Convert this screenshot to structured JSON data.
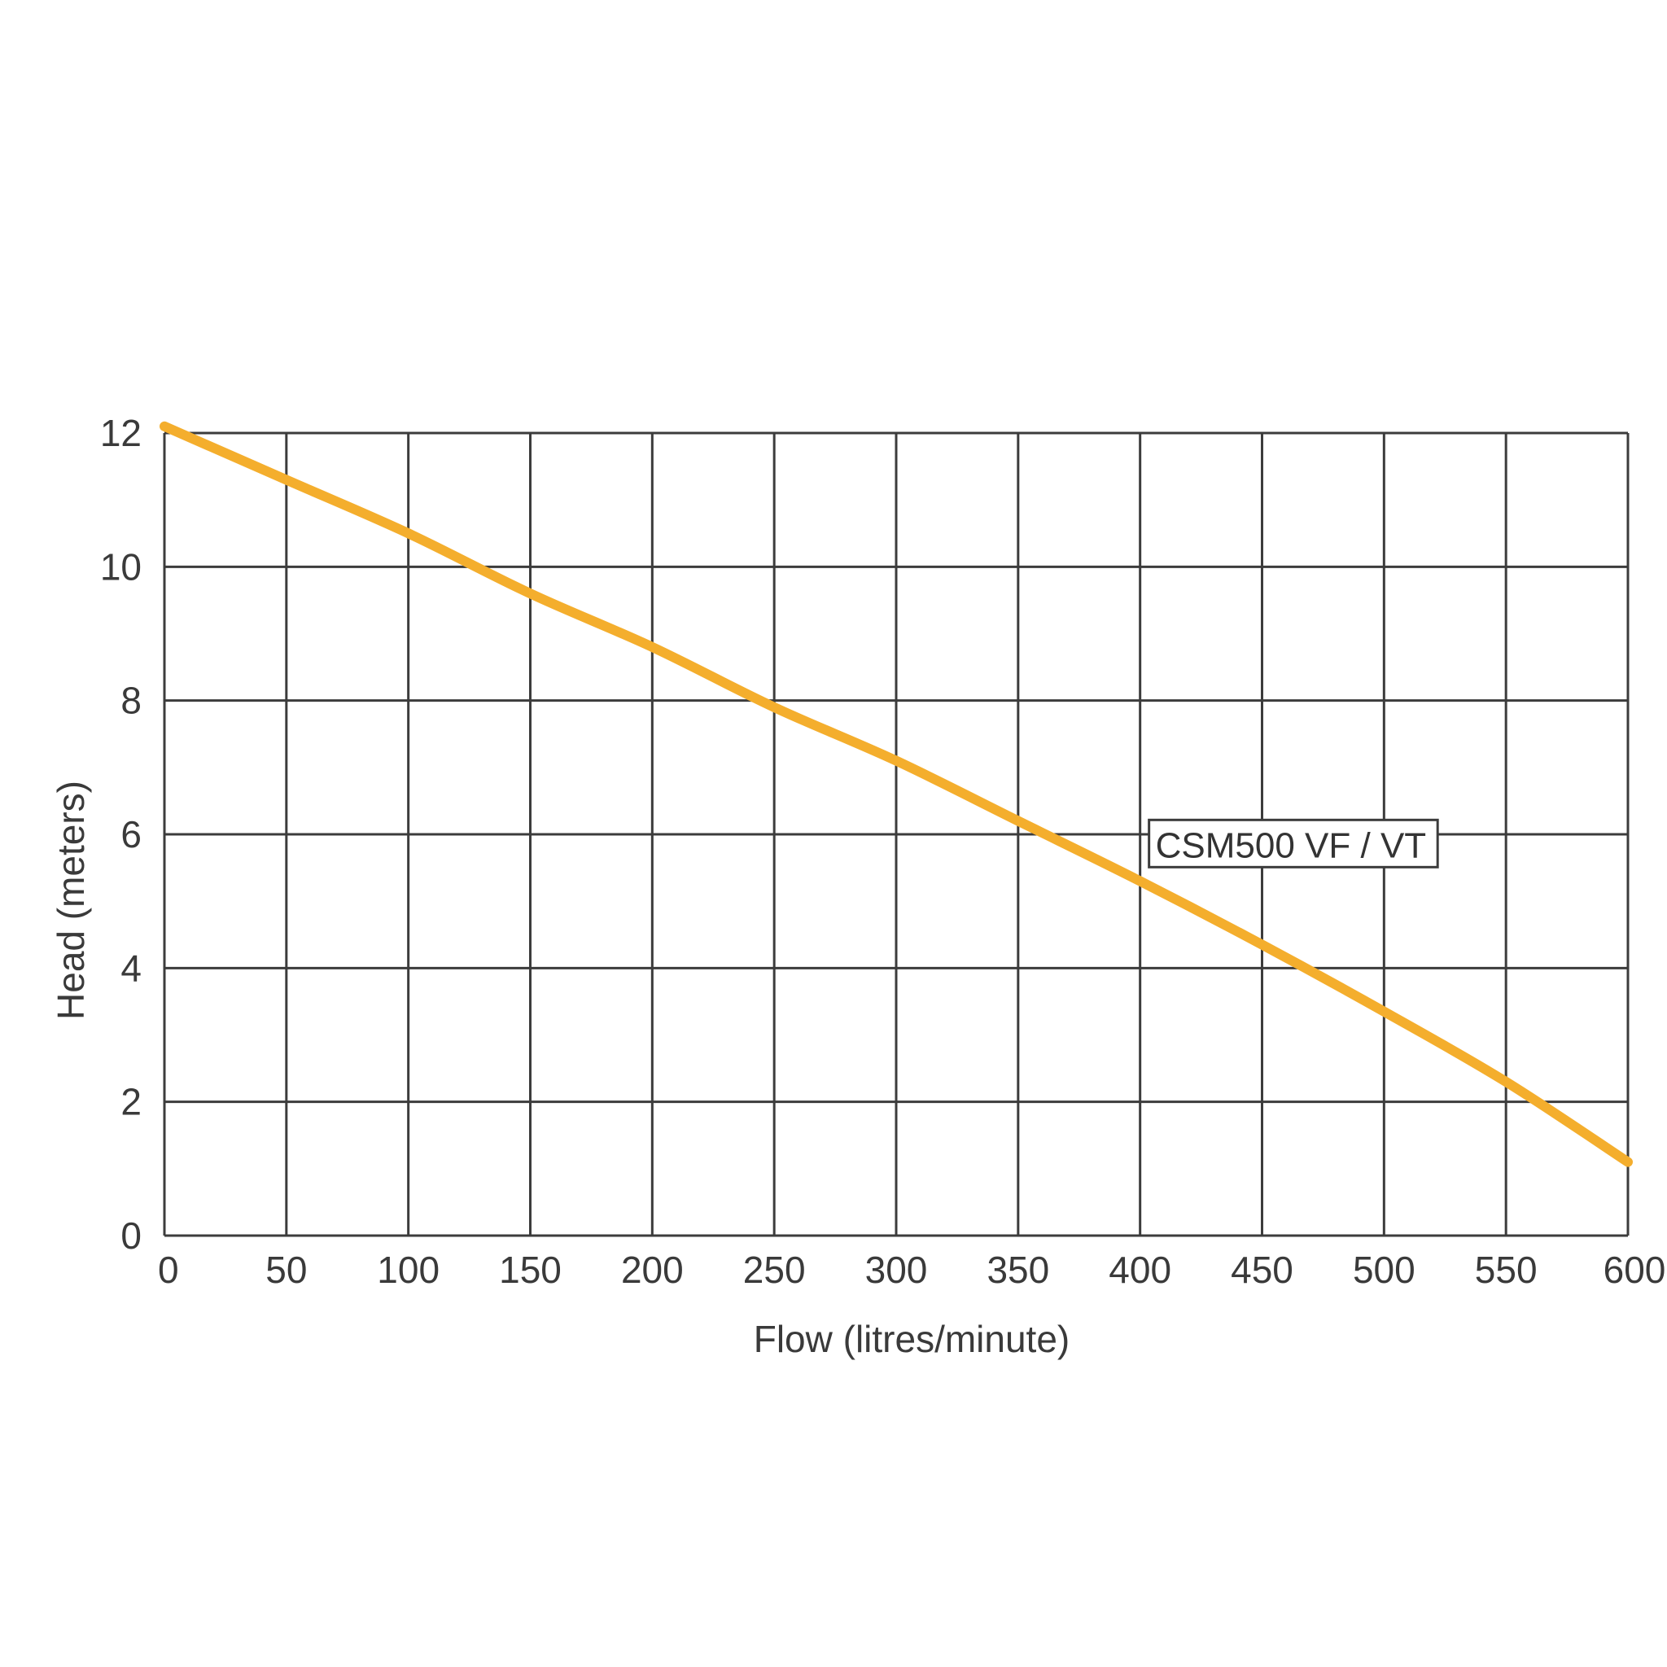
{
  "chart_data": {
    "type": "line",
    "title": "",
    "xlabel": "Flow (litres/minute)",
    "ylabel": "Head (meters)",
    "xlim": [
      0,
      600
    ],
    "ylim": [
      0,
      12
    ],
    "x_ticks": [
      "0",
      "50",
      "100",
      "150",
      "200",
      "250",
      "300",
      "350",
      "400",
      "450",
      "500",
      "550",
      "600"
    ],
    "y_ticks": [
      "0",
      "2",
      "4",
      "6",
      "8",
      "10",
      "12"
    ],
    "grid": true,
    "series": [
      {
        "name": "CSM500 VF / VT",
        "color": "#f4ae2d",
        "x": [
          0,
          50,
          100,
          150,
          200,
          250,
          300,
          350,
          400,
          450,
          500,
          550,
          600
        ],
        "y": [
          12.1,
          11.3,
          10.5,
          9.6,
          8.8,
          7.9,
          7.1,
          6.2,
          5.3,
          4.35,
          3.35,
          2.3,
          1.1
        ]
      }
    ],
    "annotations": [
      {
        "text": "CSM500 VF / VT",
        "x": 405,
        "y": 5.85
      }
    ]
  }
}
